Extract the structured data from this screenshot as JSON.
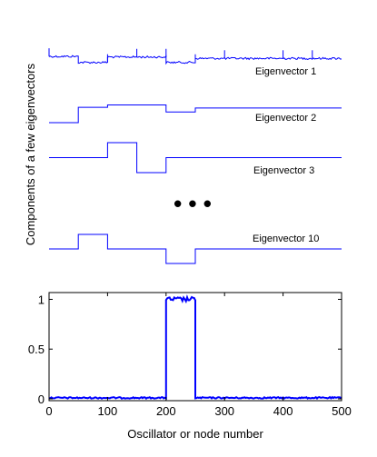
{
  "chart_data": [
    {
      "type": "line",
      "panel": "eigenvector-stack",
      "ylabel": "Components of a few eigenvectors",
      "xlim": [
        0,
        500
      ],
      "gap_marker": "• • •",
      "series": [
        {
          "name": "Eigenvector 1",
          "segments": [
            {
              "x": [
                0,
                50
              ],
              "y": 0.45
            },
            {
              "x": [
                50,
                100
              ],
              "y": 0.15
            },
            {
              "x": [
                100,
                200
              ],
              "y": 0.42
            },
            {
              "x": [
                200,
                250
              ],
              "y": 0.15
            },
            {
              "x": [
                250,
                500
              ],
              "y": 0.35
            }
          ],
          "spikes_at": [
            0,
            100,
            150,
            200,
            250,
            300,
            400,
            450
          ],
          "noisy": true
        },
        {
          "name": "Eigenvector 2",
          "segments": [
            {
              "x": [
                0,
                50
              ],
              "y": 0.0
            },
            {
              "x": [
                50,
                100
              ],
              "y": 0.65
            },
            {
              "x": [
                100,
                200
              ],
              "y": 0.75
            },
            {
              "x": [
                200,
                250
              ],
              "y": 0.45
            },
            {
              "x": [
                250,
                500
              ],
              "y": 0.62
            }
          ]
        },
        {
          "name": "Eigenvector 3",
          "segments": [
            {
              "x": [
                0,
                100
              ],
              "y": 0.5
            },
            {
              "x": [
                100,
                150
              ],
              "y": 1.0
            },
            {
              "x": [
                150,
                200
              ],
              "y": 0.0
            },
            {
              "x": [
                200,
                500
              ],
              "y": 0.5
            }
          ]
        },
        {
          "name": "Eigenvector 10",
          "segments": [
            {
              "x": [
                0,
                50
              ],
              "y": 0.5
            },
            {
              "x": [
                50,
                100
              ],
              "y": 1.0
            },
            {
              "x": [
                100,
                200
              ],
              "y": 0.5
            },
            {
              "x": [
                200,
                250
              ],
              "y": 0.0
            },
            {
              "x": [
                250,
                500
              ],
              "y": 0.5
            }
          ]
        }
      ]
    },
    {
      "type": "line",
      "panel": "main-axes",
      "xlabel": "Oscillator or node number",
      "xlim": [
        0,
        500
      ],
      "ylim": [
        0,
        1.05
      ],
      "xticks": [
        "0",
        "100",
        "200",
        "300",
        "400",
        "500"
      ],
      "xtick_values": [
        0,
        100,
        200,
        300,
        400,
        500
      ],
      "yticks": [
        "0",
        "0.5",
        "1"
      ],
      "ytick_values": [
        0,
        0.5,
        1
      ],
      "series": [
        {
          "segments": [
            {
              "x": [
                0,
                200
              ],
              "y": 0.01
            },
            {
              "x": [
                200,
                250
              ],
              "y": 1.0
            },
            {
              "x": [
                250,
                500
              ],
              "y": 0.01
            }
          ],
          "noisy": true
        }
      ]
    }
  ]
}
